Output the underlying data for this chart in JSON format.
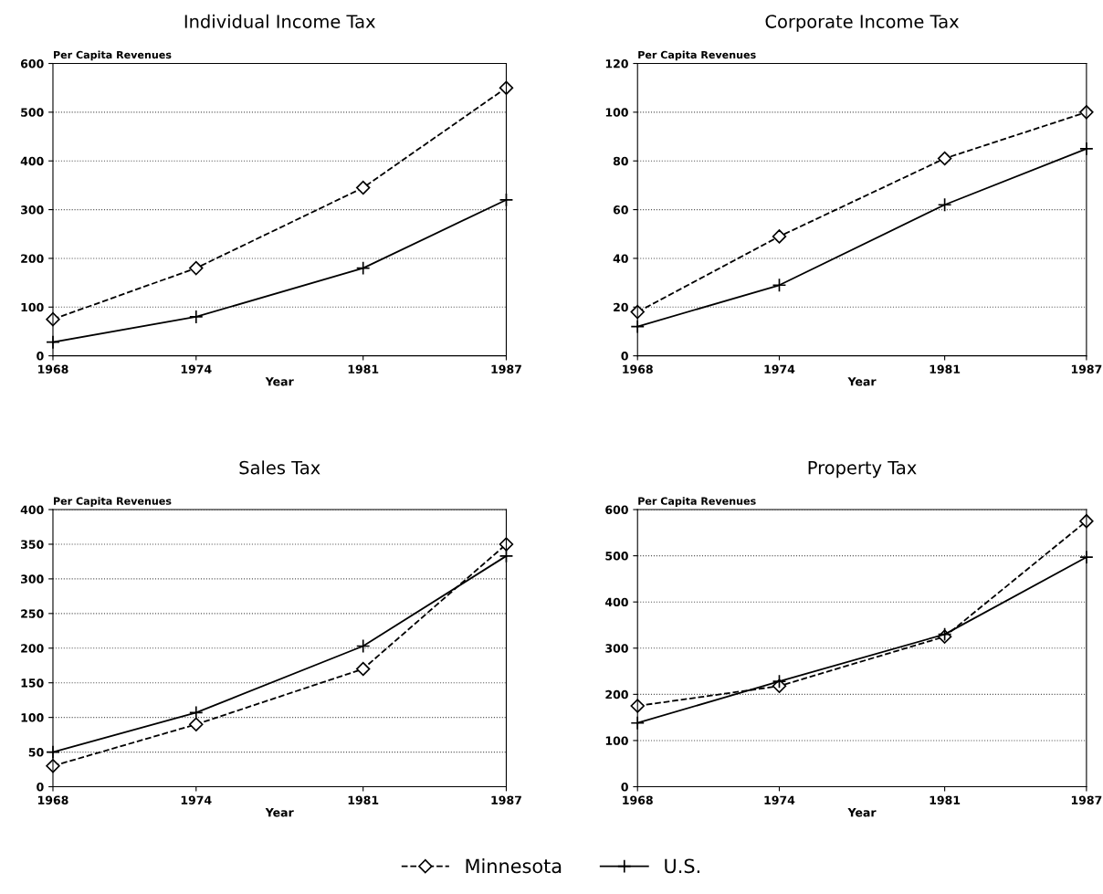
{
  "chart_data": [
    {
      "type": "line",
      "title": "Individual Income Tax",
      "ylabel": "Per Capita Revenues",
      "xlabel": "Year",
      "x": [
        1968,
        1974,
        1981,
        1987
      ],
      "xlim": [
        1968,
        1987
      ],
      "xticks": [
        1968,
        1974,
        1981,
        1987
      ],
      "ylim": [
        0,
        600
      ],
      "yticks": [
        0,
        100,
        200,
        300,
        400,
        500,
        600
      ],
      "grid": "y",
      "legend": "bottom",
      "series": [
        {
          "name": "Minnesota",
          "color": "#000000",
          "marker": "diamond",
          "line_style": "dashed",
          "values": [
            75,
            180,
            345,
            550
          ]
        },
        {
          "name": "U.S.",
          "color": "#000000",
          "marker": "cross",
          "line_style": "solid",
          "values": [
            28,
            80,
            180,
            320
          ]
        }
      ]
    },
    {
      "type": "line",
      "title": "Corporate Income Tax",
      "ylabel": "Per Capita Revenues",
      "xlabel": "Year",
      "x": [
        1968,
        1974,
        1981,
        1987
      ],
      "xlim": [
        1968,
        1987
      ],
      "xticks": [
        1968,
        1974,
        1981,
        1987
      ],
      "ylim": [
        0,
        120
      ],
      "yticks": [
        0,
        20,
        40,
        60,
        80,
        100,
        120
      ],
      "grid": "y",
      "legend": "bottom",
      "series": [
        {
          "name": "Minnesota",
          "color": "#000000",
          "marker": "diamond",
          "line_style": "dashed",
          "values": [
            18,
            49,
            81,
            100
          ]
        },
        {
          "name": "U.S.",
          "color": "#000000",
          "marker": "cross",
          "line_style": "solid",
          "values": [
            12,
            29,
            62,
            85
          ]
        }
      ]
    },
    {
      "type": "line",
      "title": "Sales Tax",
      "ylabel": "Per Capita Revenues",
      "xlabel": "Year",
      "x": [
        1968,
        1974,
        1981,
        1987
      ],
      "xlim": [
        1968,
        1987
      ],
      "xticks": [
        1968,
        1974,
        1981,
        1987
      ],
      "ylim": [
        0,
        400
      ],
      "yticks": [
        0,
        50,
        100,
        150,
        200,
        250,
        300,
        350,
        400
      ],
      "grid": "y",
      "legend": "bottom",
      "series": [
        {
          "name": "Minnesota",
          "color": "#000000",
          "marker": "diamond",
          "line_style": "dashed",
          "values": [
            30,
            90,
            170,
            350
          ]
        },
        {
          "name": "U.S.",
          "color": "#000000",
          "marker": "cross",
          "line_style": "solid",
          "values": [
            50,
            107,
            203,
            333
          ]
        }
      ]
    },
    {
      "type": "line",
      "title": "Property Tax",
      "ylabel": "Per Capita Revenues",
      "xlabel": "Year",
      "x": [
        1968,
        1974,
        1981,
        1987
      ],
      "xlim": [
        1968,
        1987
      ],
      "xticks": [
        1968,
        1974,
        1981,
        1987
      ],
      "ylim": [
        0,
        600
      ],
      "yticks": [
        0,
        100,
        200,
        300,
        400,
        500,
        600
      ],
      "grid": "y",
      "legend": "bottom",
      "series": [
        {
          "name": "Minnesota",
          "color": "#000000",
          "marker": "diamond",
          "line_style": "dashed",
          "values": [
            175,
            218,
            325,
            575
          ]
        },
        {
          "name": "U.S.",
          "color": "#000000",
          "marker": "cross",
          "line_style": "solid",
          "values": [
            138,
            228,
            330,
            497
          ]
        }
      ]
    }
  ]
}
